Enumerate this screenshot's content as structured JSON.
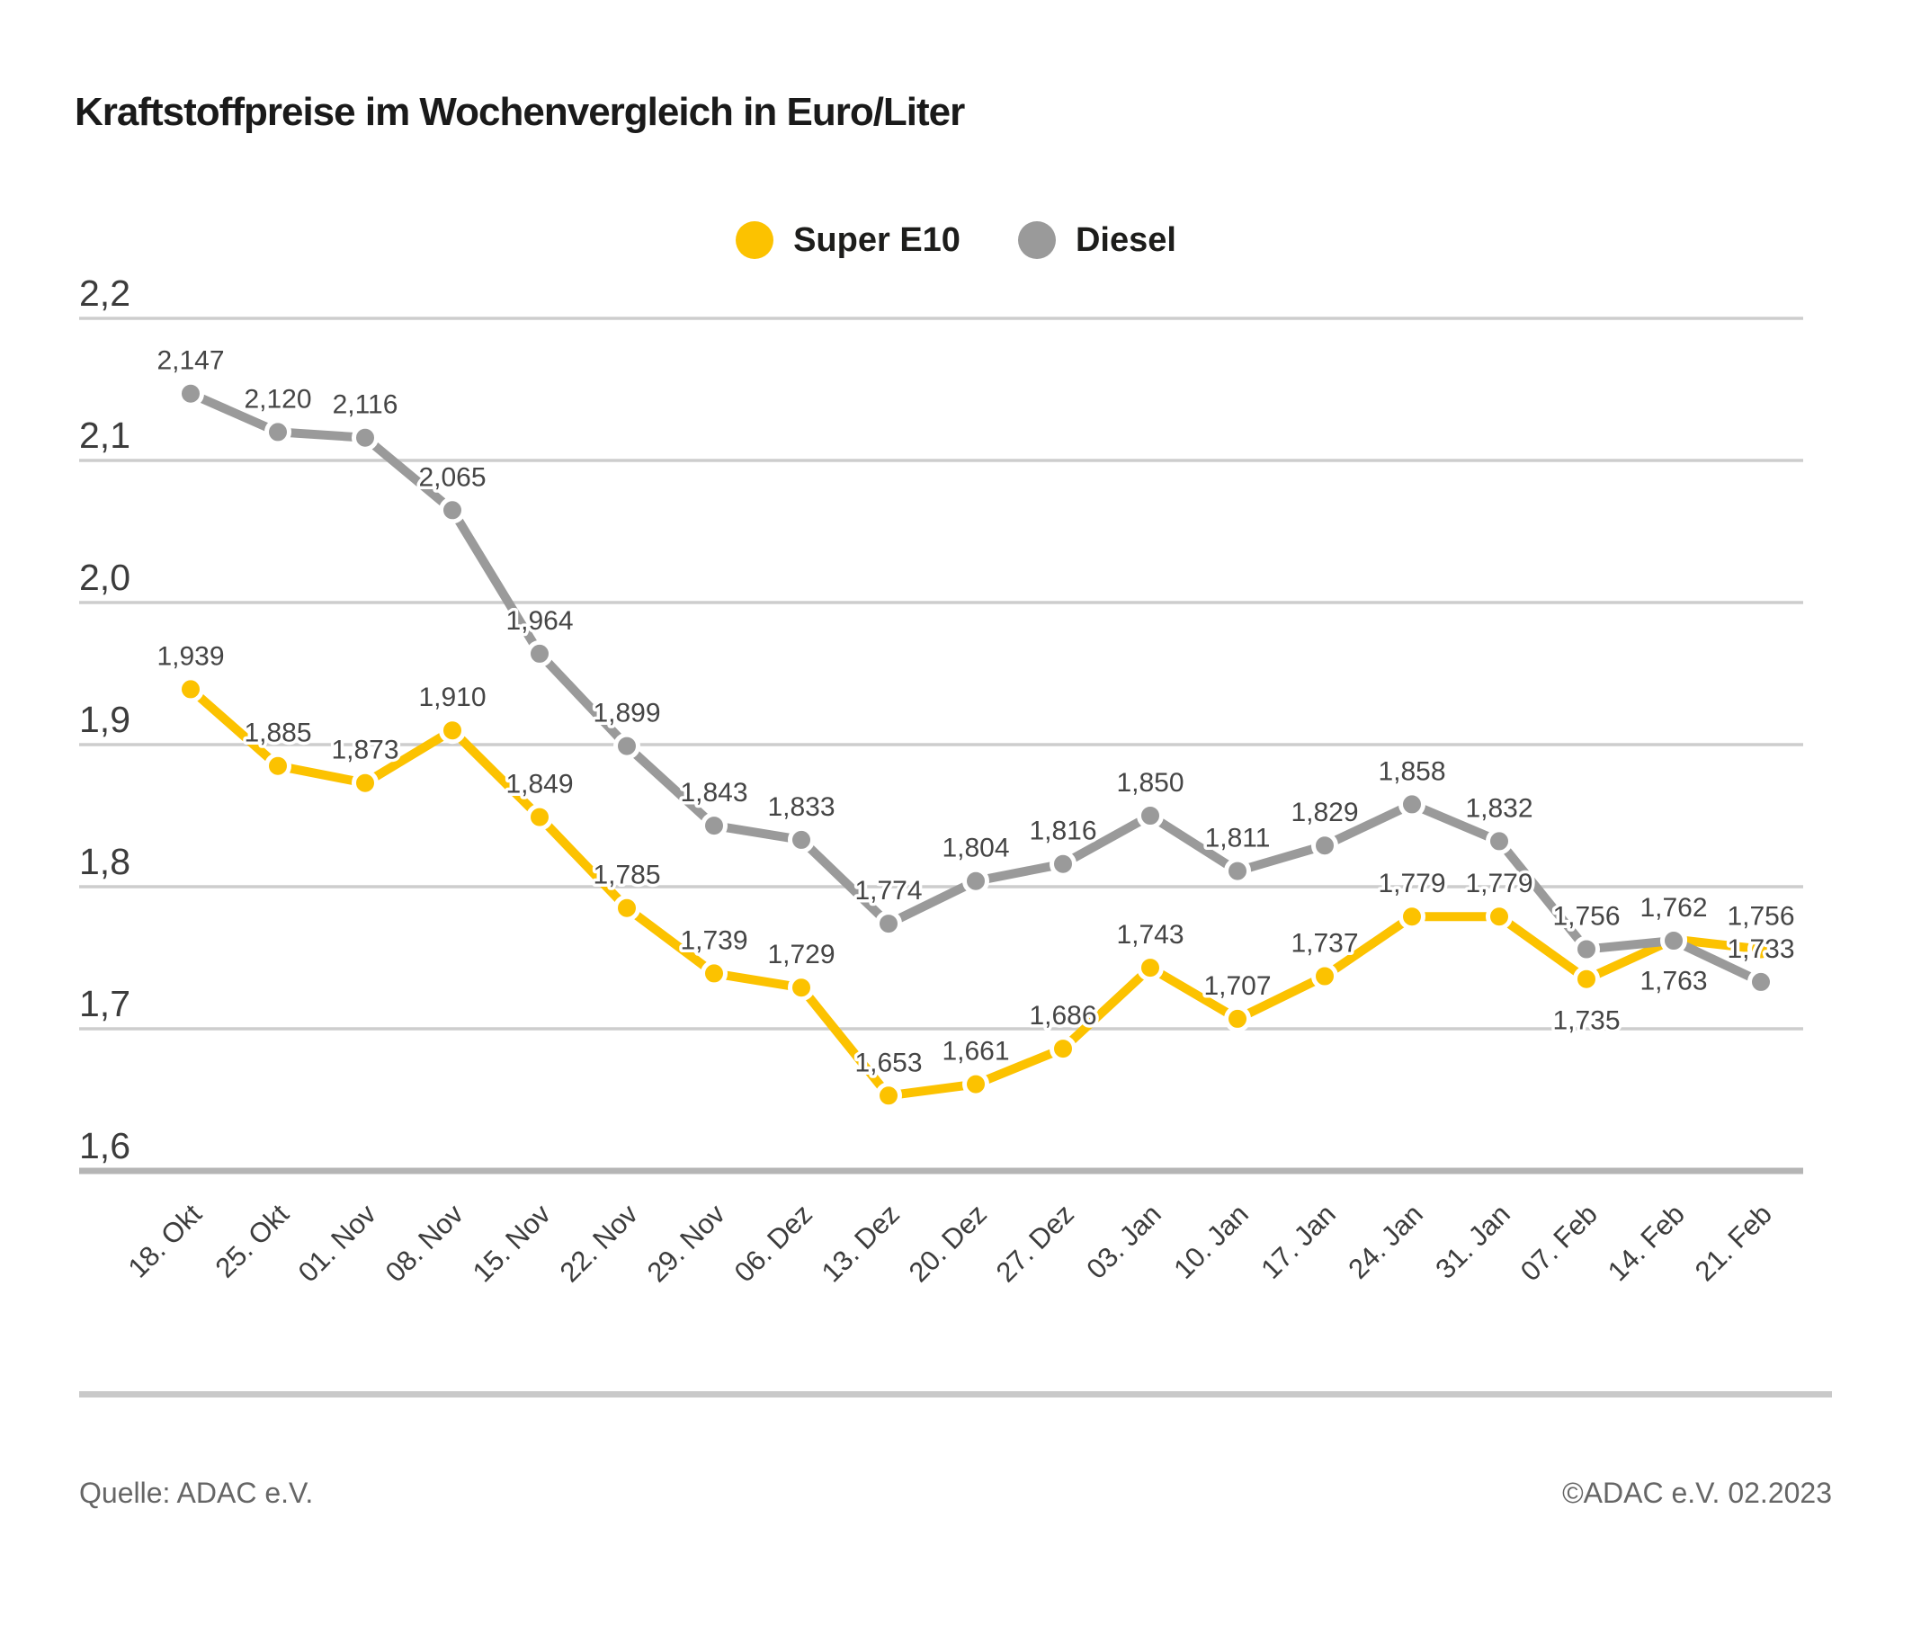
{
  "title": "Kraftstoffpreise im Wochenvergleich in Euro/Liter",
  "legend": {
    "items": [
      {
        "label": "Super E10",
        "color": "#FCC200"
      },
      {
        "label": "Diesel",
        "color": "#9A9A9A"
      }
    ]
  },
  "footer": {
    "source": "Quelle: ADAC e.V.",
    "copyright": "©ADAC e.V. 02.2023"
  },
  "chart_data": {
    "type": "line",
    "title": "Kraftstoffpreise im Wochenvergleich in Euro/Liter",
    "grid": true,
    "legend_position": "top-center",
    "x_labels": [
      "18. Okt",
      "25. Okt",
      "01. Nov",
      "08. Nov",
      "15. Nov",
      "22. Nov",
      "29. Nov",
      "06. Dez",
      "13. Dez",
      "20. Dez",
      "27. Dez",
      "03. Jan",
      "10. Jan",
      "17. Jan",
      "24. Jan",
      "31. Jan",
      "07. Feb",
      "14. Feb",
      "21. Feb"
    ],
    "series": [
      {
        "name": "Super E10",
        "color": "#FCC200",
        "values": [
          1.939,
          1.885,
          1.873,
          1.91,
          1.849,
          1.785,
          1.739,
          1.729,
          1.653,
          1.661,
          1.686,
          1.743,
          1.707,
          1.737,
          1.779,
          1.779,
          1.735,
          1.763,
          1.756
        ],
        "labels": [
          "1,939",
          "1,885",
          "1,873",
          "1,910",
          "1,849",
          "1,785",
          "1,739",
          "1,729",
          "1,653",
          "1,661",
          "1,686",
          "1,743",
          "1,707",
          "1,737",
          "1,779",
          "1,779",
          "1,735",
          "1,763",
          "1,756"
        ]
      },
      {
        "name": "Diesel",
        "color": "#9A9A9A",
        "values": [
          2.147,
          2.12,
          2.116,
          2.065,
          1.964,
          1.899,
          1.843,
          1.833,
          1.774,
          1.804,
          1.816,
          1.85,
          1.811,
          1.829,
          1.858,
          1.832,
          1.756,
          1.762,
          1.733
        ],
        "labels": [
          "2,147",
          "2,120",
          "2,116",
          "2,065",
          "1,964",
          "1,899",
          "1,843",
          "1,833",
          "1,774",
          "1,804",
          "1,816",
          "1,850",
          "1,811",
          "1,829",
          "1,858",
          "1,832",
          "1,756",
          "1,762",
          "1,733"
        ]
      }
    ],
    "y_axis": {
      "min": 1.6,
      "max": 2.2,
      "ticks": [
        {
          "value": 2.2,
          "label": "2,2"
        },
        {
          "value": 2.1,
          "label": "2,1"
        },
        {
          "value": 2.0,
          "label": "2,0"
        },
        {
          "value": 1.9,
          "label": "1,9"
        },
        {
          "value": 1.8,
          "label": "1,8"
        },
        {
          "value": 1.7,
          "label": "1,7"
        },
        {
          "value": 1.6,
          "label": "1,6"
        }
      ]
    }
  }
}
